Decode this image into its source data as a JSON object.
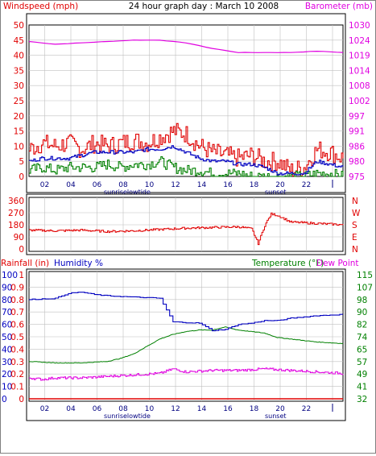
{
  "title": "24 hour graph day : March 10 2008",
  "colors": {
    "wind": "#e00000",
    "wind_avg": "#0000c0",
    "wind_low": "#008000",
    "barometer": "#e000e0",
    "direction": "#e00000",
    "humidity": "#0000c0",
    "temperature": "#008000",
    "dew_point": "#e000e0",
    "rainfall": "#e00000",
    "grid": "#c0c0c0"
  },
  "chart_data": [
    {
      "type": "line",
      "title": "24 hour graph day : March 10 2008",
      "ylabel": "Windspeed (mph)",
      "ylabel_right": "Barometer (mb)",
      "ylim": [
        0,
        50
      ],
      "yticks": [
        "50",
        "45",
        "40",
        "35",
        "30",
        "25",
        "20",
        "15",
        "10",
        "5",
        "0"
      ],
      "y2ticks": [
        "1030",
        "1024",
        "1019",
        "1014",
        "1008",
        "1002",
        "997",
        "991",
        "986",
        "980",
        "975"
      ],
      "y2lim": [
        975,
        1030
      ],
      "xticks": [
        "02",
        "04",
        "06",
        "08",
        "10",
        "12",
        "14",
        "16",
        "18",
        "20",
        "22",
        ""
      ],
      "markers": [
        "sunrise",
        "lowtide",
        "sunset"
      ],
      "grid": true,
      "series": [
        {
          "key": "wind_gust",
          "x": [
            0,
            1,
            2,
            3,
            4,
            5,
            6,
            7,
            8,
            9,
            10,
            11,
            12,
            13,
            14,
            15,
            16,
            17,
            18,
            19,
            20,
            21,
            22,
            23,
            24
          ],
          "values": [
            9,
            11,
            10,
            11,
            9,
            11,
            10,
            11,
            12,
            11,
            13,
            15,
            14,
            10,
            8,
            7,
            6,
            7,
            5,
            5,
            2,
            3,
            9,
            8,
            6
          ]
        },
        {
          "key": "wind_avg",
          "x": [
            0,
            1,
            2,
            3,
            4,
            5,
            6,
            7,
            8,
            9,
            10,
            11,
            12,
            13,
            14,
            15,
            16,
            17,
            18,
            19,
            20,
            21,
            22,
            23,
            24
          ],
          "values": [
            5,
            6,
            6,
            6,
            7,
            8,
            8,
            8,
            8,
            9,
            9,
            10,
            8,
            6,
            5,
            5,
            4,
            4,
            3,
            1,
            1,
            1,
            5,
            4,
            3
          ]
        },
        {
          "key": "wind_low",
          "x": [
            0,
            1,
            2,
            3,
            4,
            5,
            6,
            7,
            8,
            9,
            10,
            11,
            12,
            13,
            14,
            15,
            16,
            17,
            18,
            19,
            20,
            21,
            22,
            23,
            24
          ],
          "values": [
            2,
            3,
            2,
            3,
            3,
            3,
            4,
            3,
            4,
            4,
            5,
            3,
            2,
            2,
            1,
            1,
            1,
            0,
            0,
            0,
            0,
            0,
            1,
            1,
            0
          ]
        },
        {
          "key": "barometer",
          "x": [
            0,
            2,
            4,
            6,
            8,
            10,
            12,
            14,
            16,
            18,
            20,
            22,
            24
          ],
          "values": [
            1024,
            1023,
            1023.5,
            1024,
            1024.5,
            1024.5,
            1023.5,
            1021.5,
            1020,
            1020,
            1020,
            1020.5,
            1020
          ]
        }
      ]
    },
    {
      "type": "line",
      "ylim": [
        0,
        360
      ],
      "yticks": [
        "360",
        "270",
        "180",
        "90",
        "0"
      ],
      "compass": [
        "N",
        "W",
        "S",
        "E",
        "N"
      ],
      "series": [
        {
          "key": "direction",
          "x": [
            0,
            2,
            4,
            6,
            8,
            10,
            12,
            14,
            16,
            17,
            17.5,
            18,
            18.5,
            19,
            20,
            22,
            24
          ],
          "values": [
            140,
            135,
            140,
            130,
            135,
            145,
            155,
            160,
            165,
            150,
            40,
            175,
            260,
            250,
            200,
            190,
            180
          ]
        }
      ]
    },
    {
      "type": "line",
      "ylabel": "Rainfall (in)",
      "ylabel2": "Humidity %",
      "ylabel_right": "Temperature (°F)",
      "ylabel_right2": "Dew Point",
      "rain_ticks": [
        "1",
        "0.9",
        "0.8",
        "0.7",
        "0.6",
        "0.5",
        "0.4",
        "0.3",
        "0.2",
        "0.1",
        "0"
      ],
      "humidity_ticks": [
        "100",
        "90",
        "80",
        "70",
        "60",
        "50",
        "40",
        "30",
        "20",
        "10",
        "0"
      ],
      "temp_ticks": [
        "115",
        "107",
        "98",
        "90",
        "82",
        "74",
        "65",
        "57",
        "49",
        "41",
        "32"
      ],
      "series": [
        {
          "key": "humidity",
          "x": [
            0,
            2,
            3,
            4,
            5,
            6,
            8,
            10,
            11,
            13,
            14,
            15,
            16,
            17,
            18,
            19,
            20,
            22,
            24
          ],
          "values": [
            80,
            81,
            85,
            86,
            84,
            83,
            82,
            81,
            62,
            61,
            55,
            56,
            60,
            61,
            63,
            63,
            65,
            67,
            68
          ]
        },
        {
          "key": "temperature",
          "x": [
            0,
            2,
            4,
            6,
            7,
            8,
            9,
            10,
            11,
            12,
            13,
            14,
            15,
            16,
            17,
            18,
            19,
            20,
            22,
            24
          ],
          "values": [
            57,
            56,
            56,
            57,
            59,
            62,
            67,
            72,
            75,
            77,
            78,
            78,
            80,
            78,
            77,
            76,
            73,
            72,
            70,
            69
          ]
        },
        {
          "key": "dew_point",
          "x": [
            0,
            1,
            2,
            4,
            6,
            8,
            10,
            11,
            12,
            14,
            16,
            18,
            20,
            22,
            24
          ],
          "values": [
            46,
            45,
            46,
            46,
            47,
            48,
            49,
            52,
            50,
            51,
            51,
            52,
            51,
            50,
            49
          ]
        },
        {
          "key": "rainfall",
          "x": [
            0,
            24
          ],
          "values": [
            0,
            0
          ]
        }
      ]
    }
  ]
}
